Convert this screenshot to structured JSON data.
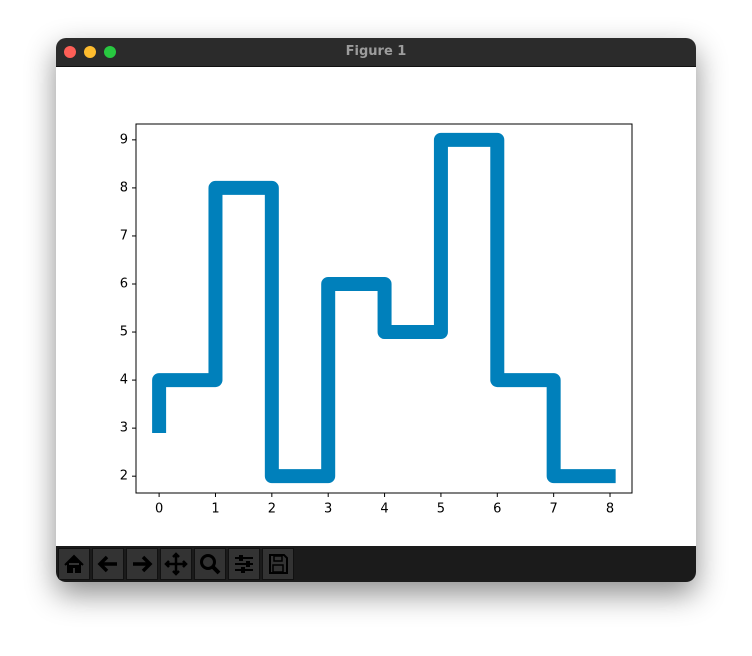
{
  "window": {
    "title": "Figure 1"
  },
  "chart_data": {
    "type": "step",
    "where": "pre",
    "x": [
      0,
      1,
      2,
      3,
      4,
      5,
      6,
      7,
      8.1
    ],
    "values": [
      2.9,
      4,
      8,
      2,
      6,
      5,
      9,
      4,
      2
    ],
    "color": "#0080bb",
    "xlim": [
      -0.41,
      8.39
    ],
    "ylim": [
      1.65,
      9.33
    ],
    "xticks": [
      0,
      1,
      2,
      3,
      4,
      5,
      6,
      7,
      8
    ],
    "yticks": [
      2,
      3,
      4,
      5,
      6,
      7,
      8,
      9
    ]
  }
}
